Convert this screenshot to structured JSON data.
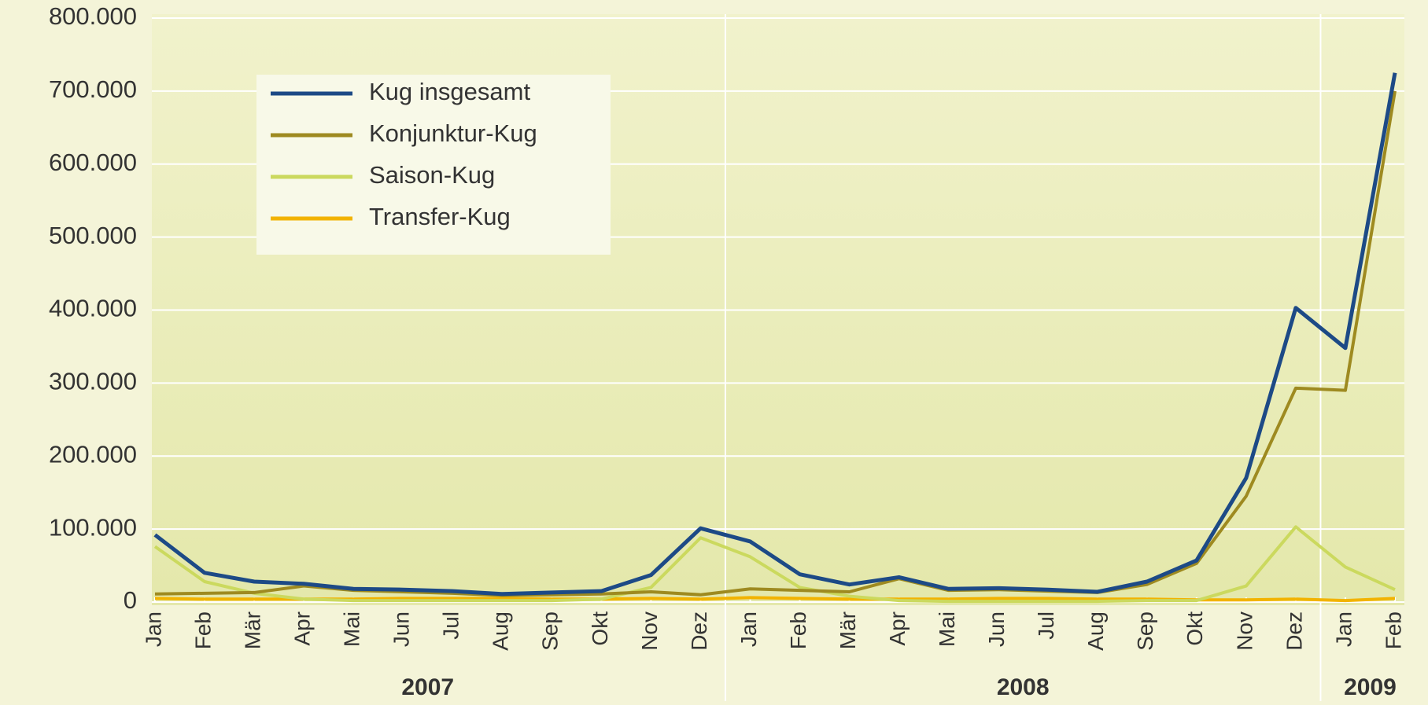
{
  "chart_data": {
    "type": "line",
    "categories": [
      "Jan",
      "Feb",
      "Mär",
      "Apr",
      "Mai",
      "Jun",
      "Jul",
      "Aug",
      "Sep",
      "Okt",
      "Nov",
      "Dez",
      "Jan",
      "Feb",
      "Mär",
      "Apr",
      "Mai",
      "Jun",
      "Jul",
      "Aug",
      "Sep",
      "Okt",
      "Nov",
      "Dez",
      "Jan",
      "Feb"
    ],
    "year_labels": [
      "2007",
      "2008",
      "2009"
    ],
    "series": [
      {
        "name": "Kug insgesamt",
        "color": "#1d4a86",
        "values": [
          92000,
          40000,
          28000,
          25000,
          18000,
          17000,
          15000,
          11000,
          13000,
          15000,
          37000,
          101000,
          83000,
          38000,
          24000,
          34000,
          18000,
          19000,
          17000,
          14000,
          28000,
          57000,
          170000,
          403000,
          348000,
          725000
        ]
      },
      {
        "name": "Konjunktur-Kug",
        "color": "#9e8a20",
        "values": [
          11000,
          12000,
          13000,
          22000,
          16000,
          14000,
          12000,
          9000,
          10000,
          11000,
          14000,
          10000,
          18000,
          16000,
          14000,
          32000,
          16000,
          17000,
          15000,
          13000,
          24000,
          53000,
          145000,
          293000,
          290000,
          700000
        ]
      },
      {
        "name": "Saison-Kug",
        "color": "#cbd95e",
        "values": [
          76000,
          28000,
          12000,
          4000,
          2000,
          2000,
          2000,
          2000,
          2000,
          4000,
          20000,
          88000,
          62000,
          20000,
          8000,
          2000,
          1000,
          1000,
          1000,
          1000,
          2000,
          2000,
          22000,
          103000,
          48000,
          17000
        ]
      },
      {
        "name": "Transfer-Kug",
        "color": "#f2b300",
        "values": [
          5000,
          4000,
          4000,
          4000,
          4000,
          5000,
          5000,
          5000,
          4000,
          4000,
          5000,
          4000,
          6000,
          5000,
          4000,
          4000,
          4000,
          5000,
          5000,
          4000,
          4000,
          3000,
          3000,
          4000,
          2000,
          5000
        ]
      }
    ],
    "ylim": [
      0,
      800000
    ],
    "yticks": [
      0,
      {
        "value": 100000,
        "label": "100.000"
      },
      {
        "value": 200000,
        "label": "200.000"
      },
      {
        "value": 300000,
        "label": "300.000"
      },
      {
        "value": 400000,
        "label": "400.000"
      },
      {
        "value": 500000,
        "label": "500.000"
      },
      {
        "value": 600000,
        "label": "600.000"
      },
      {
        "value": 700000,
        "label": "700.000"
      },
      {
        "value": 800000,
        "label": "800.000"
      }
    ],
    "grid": true,
    "legend": "upper left"
  }
}
